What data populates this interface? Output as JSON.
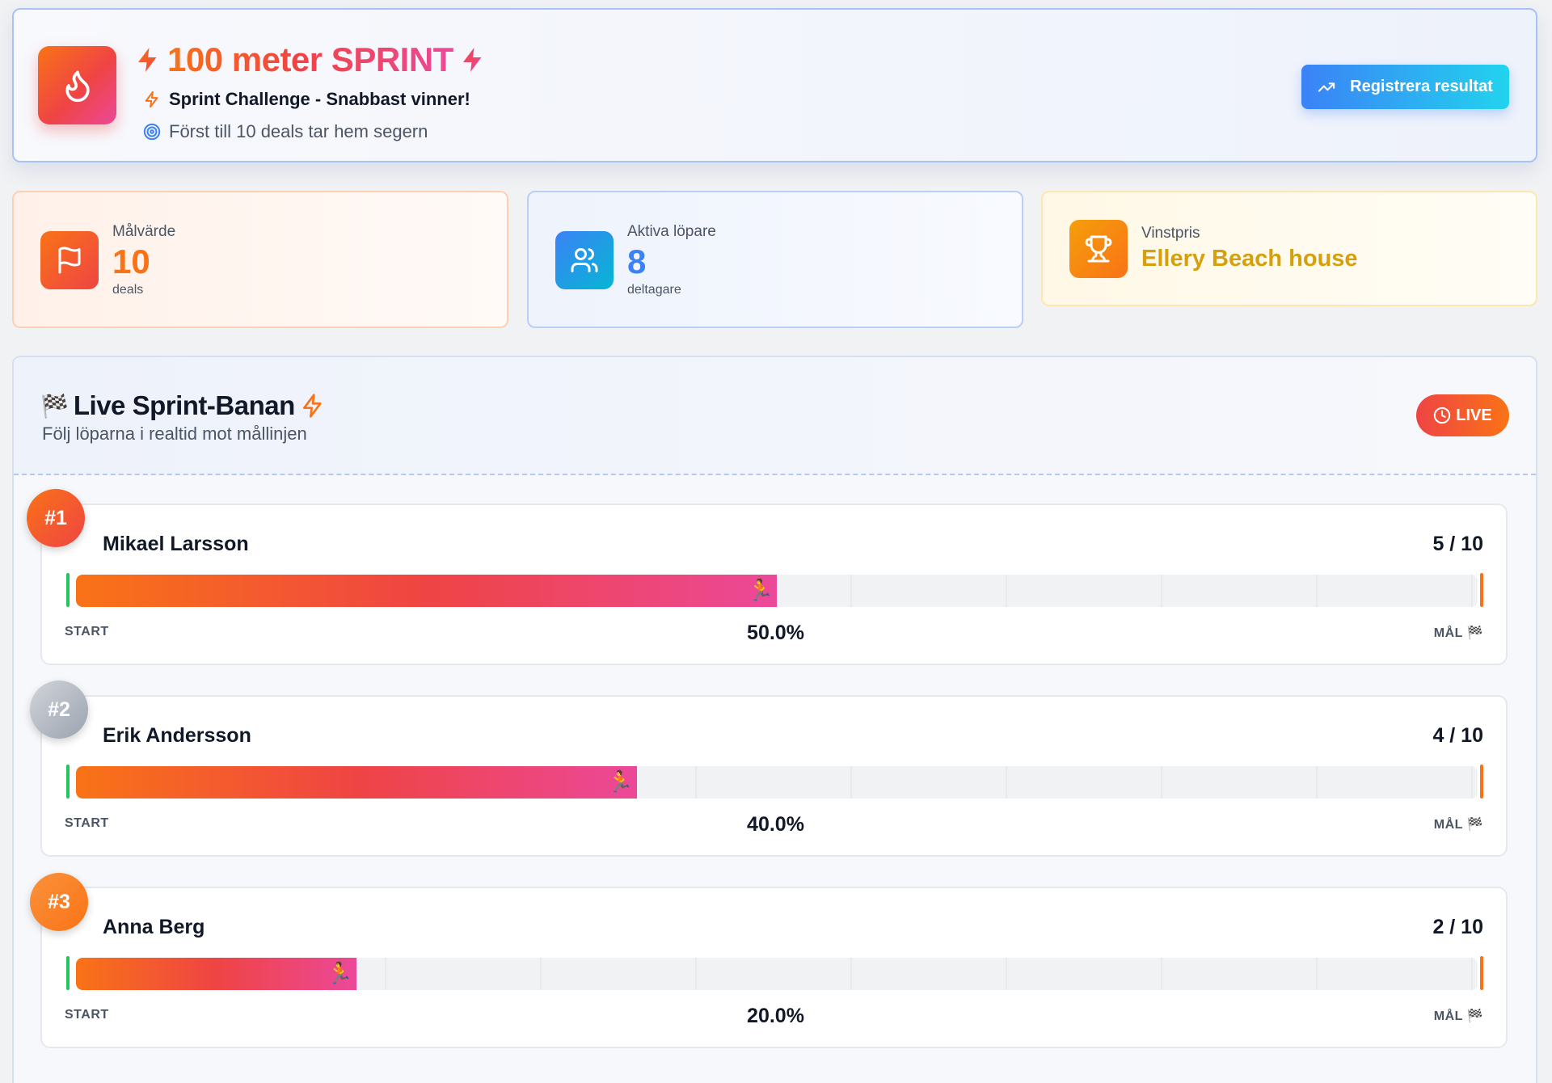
{
  "header": {
    "title": "100 meter SPRINT",
    "subtitle": "Sprint Challenge - Snabbast vinner!",
    "goal_text": "Först till 10 deals tar hem segern",
    "register_button": "Registrera resultat"
  },
  "stats": {
    "target": {
      "label": "Målvärde",
      "value": "10",
      "unit": "deals"
    },
    "runners": {
      "label": "Aktiva löpare",
      "value": "8",
      "unit": "deltagare"
    },
    "prize": {
      "label": "Vinstpris",
      "value": "Ellery Beach house"
    }
  },
  "track": {
    "title_flag": "🏁",
    "title": "Live Sprint-Banan",
    "subtitle": "Följ löparna i realtid mot mållinjen",
    "live_label": "LIVE",
    "start_label": "START",
    "finish_label": "MÅL 🏁",
    "runner_emoji": "🏃"
  },
  "runners": [
    {
      "rank": "#1",
      "name": "Mikael Larsson",
      "score": "5 / 10",
      "percent": "50.0%",
      "progress": 0.5
    },
    {
      "rank": "#2",
      "name": "Erik Andersson",
      "score": "4 / 10",
      "percent": "40.0%",
      "progress": 0.4
    },
    {
      "rank": "#3",
      "name": "Anna Berg",
      "score": "2 / 10",
      "percent": "20.0%",
      "progress": 0.2
    }
  ],
  "colors": {
    "accent_orange": "#f97316",
    "accent_red": "#ef4444",
    "accent_pink": "#ec4899",
    "accent_blue": "#3b82f6",
    "prize_gold": "#d4a00d"
  }
}
